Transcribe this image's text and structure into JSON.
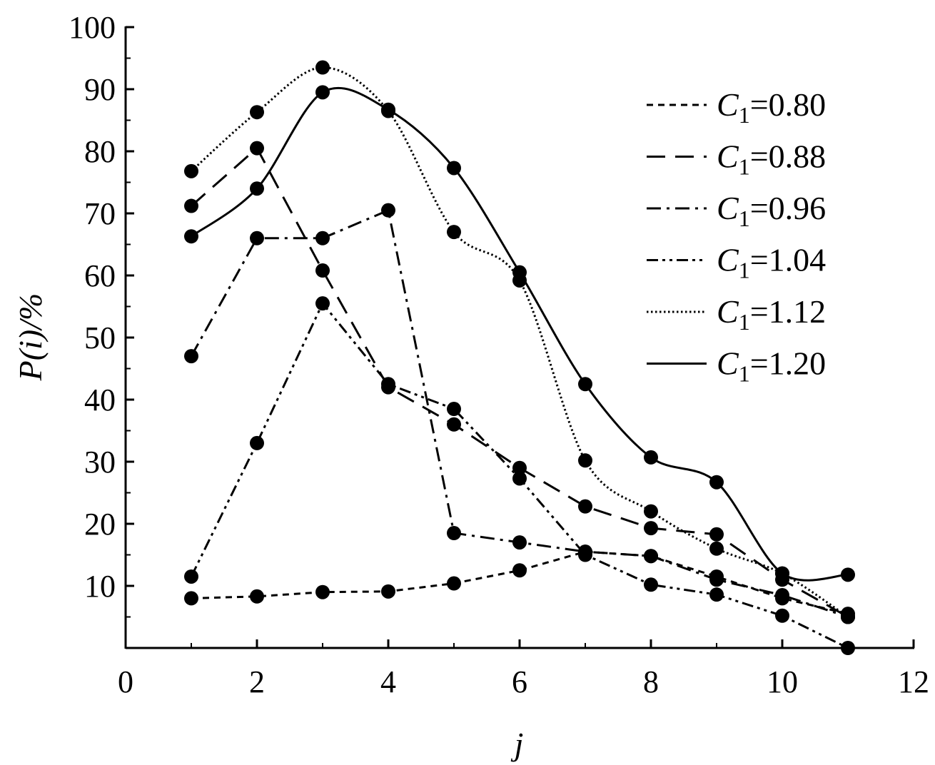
{
  "chart_data": {
    "type": "line",
    "title": "",
    "xlabel": "j",
    "ylabel": "P(i)/%",
    "xlim": [
      0,
      12
    ],
    "ylim": [
      0,
      100
    ],
    "xticks": [
      0,
      2,
      4,
      6,
      8,
      10,
      12
    ],
    "yticks": [
      10,
      20,
      30,
      40,
      50,
      60,
      70,
      80,
      90,
      100
    ],
    "grid": false,
    "legend_position": "top-right",
    "x": [
      1,
      2,
      3,
      4,
      5,
      6,
      7,
      8,
      9,
      10,
      11
    ],
    "series": [
      {
        "name": "C1=0.80",
        "legend_var": "C",
        "legend_sub": "1",
        "legend_value": "=0.80",
        "dash": "short-dash",
        "values": [
          8.0,
          8.3,
          9.0,
          9.1,
          10.4,
          12.5,
          15.5,
          14.8,
          11.5,
          8.0,
          5.5
        ]
      },
      {
        "name": "C1=0.88",
        "legend_var": "C",
        "legend_sub": "1",
        "legend_value": "=0.88",
        "dash": "long-dash",
        "values": [
          71.2,
          80.5,
          60.8,
          42.0,
          36.0,
          29.0,
          22.8,
          19.3,
          18.3,
          11.0,
          5.0
        ]
      },
      {
        "name": "C1=0.96",
        "legend_var": "C",
        "legend_sub": "1",
        "legend_value": "=0.96",
        "dash": "dash-dot",
        "values": [
          47.0,
          66.0,
          66.0,
          70.5,
          18.5,
          17.0,
          15.5,
          14.8,
          11.0,
          8.5,
          5.0
        ]
      },
      {
        "name": "C1=1.04",
        "legend_var": "C",
        "legend_sub": "1",
        "legend_value": "=1.04",
        "dash": "dash-dot-dot",
        "values": [
          11.5,
          33.0,
          55.5,
          42.5,
          38.5,
          27.3,
          15.0,
          10.2,
          8.6,
          5.2,
          0.0
        ]
      },
      {
        "name": "C1=1.12",
        "legend_var": "C",
        "legend_sub": "1",
        "legend_value": "=1.12",
        "dash": "dotted",
        "values": [
          76.8,
          86.3,
          93.5,
          86.5,
          67.0,
          59.2,
          30.2,
          22.0,
          16.0,
          12.0,
          5.0
        ]
      },
      {
        "name": "C1=1.20",
        "legend_var": "C",
        "legend_sub": "1",
        "legend_value": "=1.20",
        "dash": "solid",
        "values": [
          66.3,
          74.0,
          89.5,
          86.7,
          77.3,
          60.5,
          42.5,
          30.7,
          26.7,
          12.0,
          11.8
        ]
      }
    ]
  }
}
